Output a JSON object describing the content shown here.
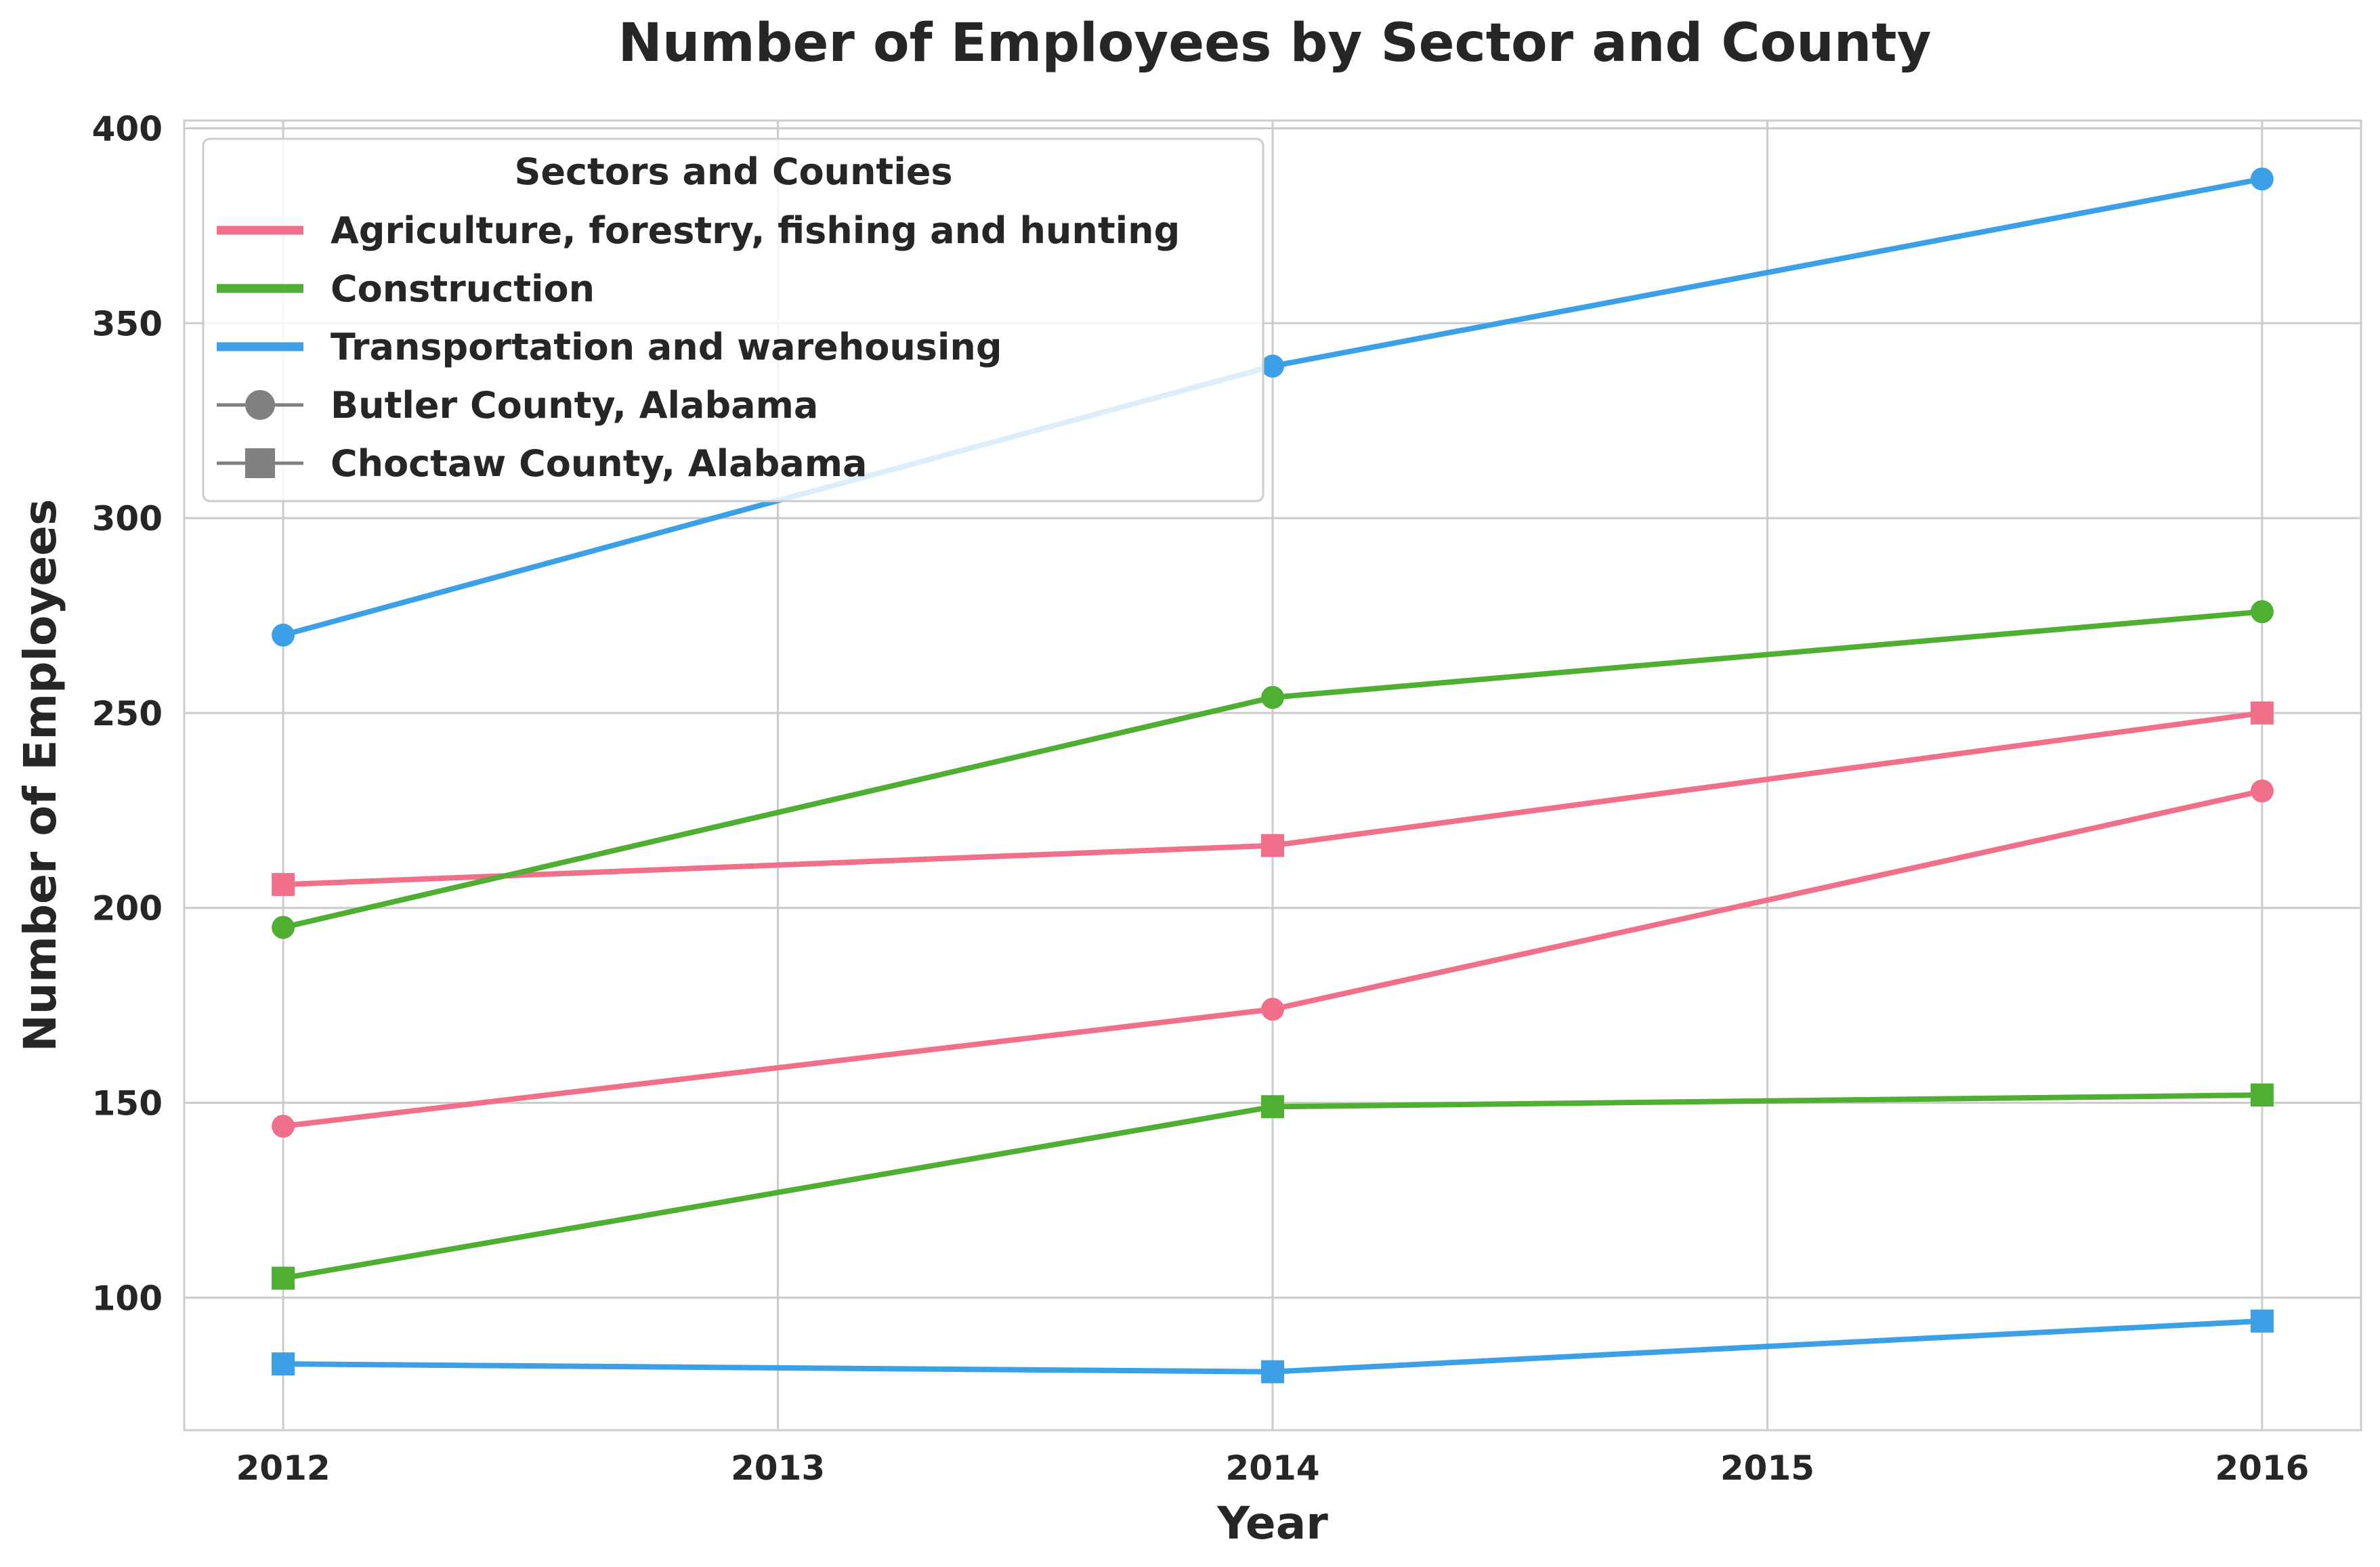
{
  "chart_data": {
    "type": "line",
    "title": "Number of Employees by Sector and County",
    "xlabel": "Year",
    "ylabel": "Number of Employees",
    "xlim": [
      2011.8,
      2016.2
    ],
    "ylim": [
      66,
      402
    ],
    "xticks": [
      2012,
      2013,
      2014,
      2015,
      2016
    ],
    "yticks": [
      100,
      150,
      200,
      250,
      300,
      350,
      400
    ],
    "grid": true,
    "legend": {
      "title": "Sectors and Counties",
      "placement": "top-left",
      "sectors": [
        {
          "name": "Agriculture, forestry, fishing and hunting",
          "color": "#f0708a"
        },
        {
          "name": "Construction",
          "color": "#4faf32"
        },
        {
          "name": "Transportation and warehousing",
          "color": "#3ca0e6"
        }
      ],
      "counties": [
        {
          "name": "Butler County, Alabama",
          "marker": "circle",
          "color": "#808080"
        },
        {
          "name": "Choctaw County, Alabama",
          "marker": "square",
          "color": "#808080"
        }
      ]
    },
    "x": [
      2012,
      2014,
      2016
    ],
    "series": [
      {
        "sector": "Agriculture, forestry, fishing and hunting",
        "county": "Butler County, Alabama",
        "marker": "circle",
        "color": "#f0708a",
        "values": [
          144,
          174,
          230
        ]
      },
      {
        "sector": "Agriculture, forestry, fishing and hunting",
        "county": "Choctaw County, Alabama",
        "marker": "square",
        "color": "#f0708a",
        "values": [
          206,
          216,
          250
        ]
      },
      {
        "sector": "Construction",
        "county": "Butler County, Alabama",
        "marker": "circle",
        "color": "#4faf32",
        "values": [
          195,
          254,
          276
        ]
      },
      {
        "sector": "Construction",
        "county": "Choctaw County, Alabama",
        "marker": "square",
        "color": "#4faf32",
        "values": [
          105,
          149,
          152
        ]
      },
      {
        "sector": "Transportation and warehousing",
        "county": "Butler County, Alabama",
        "marker": "circle",
        "color": "#3ca0e6",
        "values": [
          270,
          339,
          387
        ]
      },
      {
        "sector": "Transportation and warehousing",
        "county": "Choctaw County, Alabama",
        "marker": "square",
        "color": "#3ca0e6",
        "values": [
          83,
          81,
          94
        ]
      }
    ]
  }
}
